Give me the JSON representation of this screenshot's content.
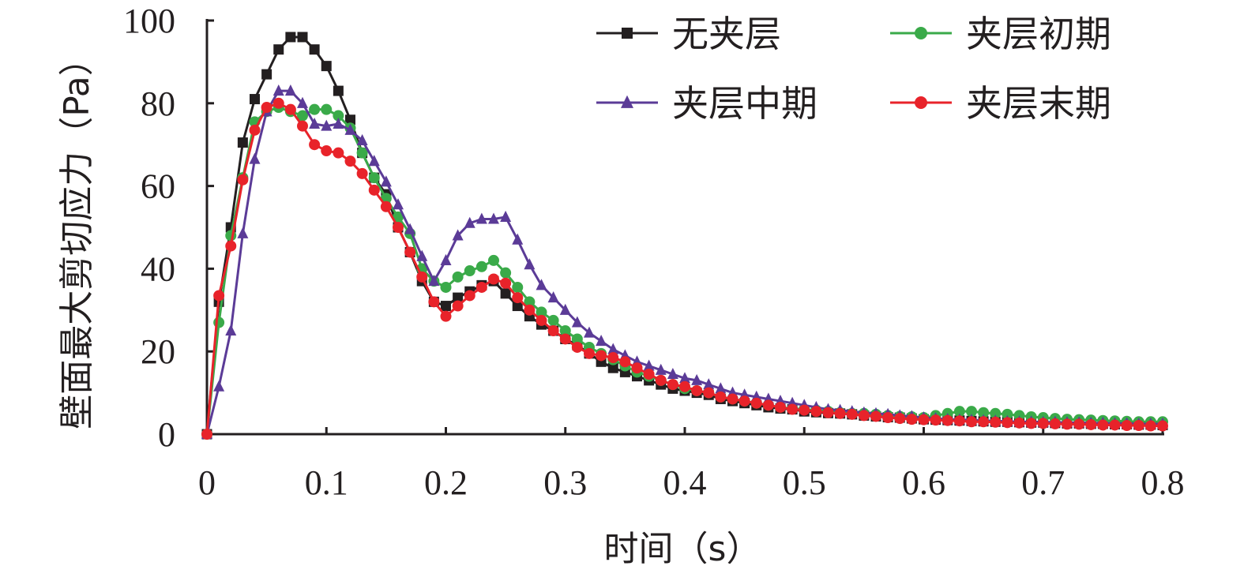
{
  "chart_data": {
    "type": "line",
    "xlabel": "时间（s）",
    "ylabel": "壁面最大剪切应力（Pa）",
    "xlim": [
      0,
      0.8
    ],
    "ylim": [
      0,
      100
    ],
    "xticks": [
      "0",
      "0.1",
      "0.2",
      "0.3",
      "0.4",
      "0.5",
      "0.6",
      "0.7",
      "0.8"
    ],
    "yticks": [
      "0",
      "20",
      "40",
      "60",
      "80",
      "100"
    ],
    "grid": false,
    "legend_position": "top-right",
    "series": [
      {
        "name": "无夹层",
        "color": "#231f20",
        "marker": "square",
        "x": [
          0,
          0.01,
          0.02,
          0.03,
          0.04,
          0.05,
          0.06,
          0.07,
          0.08,
          0.09,
          0.1,
          0.11,
          0.12,
          0.13,
          0.14,
          0.15,
          0.16,
          0.17,
          0.18,
          0.19,
          0.2,
          0.21,
          0.22,
          0.23,
          0.24,
          0.25,
          0.26,
          0.27,
          0.28,
          0.29,
          0.3,
          0.31,
          0.32,
          0.33,
          0.34,
          0.35,
          0.36,
          0.37,
          0.38,
          0.39,
          0.4,
          0.41,
          0.42,
          0.43,
          0.44,
          0.45,
          0.46,
          0.47,
          0.48,
          0.49,
          0.5,
          0.51,
          0.52,
          0.53,
          0.54,
          0.55,
          0.56,
          0.57,
          0.58,
          0.59,
          0.6,
          0.61,
          0.62,
          0.63,
          0.64,
          0.65,
          0.66,
          0.67,
          0.68,
          0.69,
          0.7,
          0.71,
          0.72,
          0.73,
          0.74,
          0.75,
          0.76,
          0.77,
          0.78,
          0.79,
          0.8
        ],
        "y": [
          0,
          32,
          50,
          70.5,
          81,
          87,
          93,
          96,
          96,
          93,
          89,
          83,
          76,
          68,
          62,
          58,
          50,
          44,
          37,
          32,
          31,
          33,
          34.5,
          36,
          37,
          34,
          31,
          28.5,
          26.5,
          25,
          23,
          21.5,
          19.5,
          17.5,
          16,
          15,
          14,
          13,
          12,
          11,
          10.5,
          10,
          9.5,
          8.5,
          8,
          7.5,
          7,
          6.5,
          6.2,
          6,
          5.5,
          5.3,
          5.1,
          5,
          4.8,
          4.5,
          4.3,
          4.1,
          4,
          3.8,
          3.6,
          3.5,
          3.4,
          3.3,
          3.2,
          3.1,
          3,
          3,
          2.9,
          2.8,
          2.8,
          2.7,
          2.6,
          2.6,
          2.5,
          2.5,
          2.4,
          2.4,
          2.3,
          2.3,
          2.2
        ]
      },
      {
        "name": "夹层初期",
        "color": "#3aaa49",
        "marker": "circle",
        "x": [
          0,
          0.01,
          0.02,
          0.03,
          0.04,
          0.05,
          0.06,
          0.07,
          0.08,
          0.09,
          0.1,
          0.11,
          0.12,
          0.13,
          0.14,
          0.15,
          0.16,
          0.17,
          0.18,
          0.19,
          0.2,
          0.21,
          0.22,
          0.23,
          0.24,
          0.25,
          0.26,
          0.27,
          0.28,
          0.29,
          0.3,
          0.31,
          0.32,
          0.33,
          0.34,
          0.35,
          0.36,
          0.37,
          0.38,
          0.39,
          0.4,
          0.41,
          0.42,
          0.43,
          0.44,
          0.45,
          0.46,
          0.47,
          0.48,
          0.49,
          0.5,
          0.51,
          0.52,
          0.53,
          0.54,
          0.55,
          0.56,
          0.57,
          0.58,
          0.59,
          0.6,
          0.61,
          0.62,
          0.63,
          0.64,
          0.65,
          0.66,
          0.67,
          0.68,
          0.69,
          0.7,
          0.71,
          0.72,
          0.73,
          0.74,
          0.75,
          0.76,
          0.77,
          0.78,
          0.79,
          0.8
        ],
        "y": [
          0,
          27,
          48,
          62,
          75.5,
          78,
          79,
          78,
          77,
          78.5,
          78.5,
          77,
          74,
          68,
          62,
          57,
          52.5,
          48.5,
          40,
          37,
          35.5,
          38,
          39.5,
          40.5,
          42,
          39,
          35.5,
          32,
          29.5,
          27.5,
          25,
          23,
          21,
          19.5,
          18,
          16.5,
          15,
          14,
          13,
          12,
          11,
          10.5,
          10,
          9,
          8.5,
          8,
          7.5,
          7,
          6.5,
          6.2,
          6,
          5.8,
          5.5,
          5.2,
          5,
          5,
          4.8,
          4.5,
          4.3,
          4.2,
          4,
          4.5,
          5,
          5.5,
          5.5,
          5.2,
          5,
          4.8,
          4.5,
          4.2,
          4,
          3.8,
          3.6,
          3.5,
          3.4,
          3.3,
          3.2,
          3.1,
          3,
          3,
          3
        ]
      },
      {
        "name": "夹层中期",
        "color": "#5b3b97",
        "marker": "triangle",
        "x": [
          0,
          0.01,
          0.02,
          0.03,
          0.04,
          0.05,
          0.06,
          0.07,
          0.08,
          0.09,
          0.1,
          0.11,
          0.12,
          0.13,
          0.14,
          0.15,
          0.16,
          0.17,
          0.18,
          0.19,
          0.2,
          0.21,
          0.22,
          0.23,
          0.24,
          0.25,
          0.26,
          0.27,
          0.28,
          0.29,
          0.3,
          0.31,
          0.32,
          0.33,
          0.34,
          0.35,
          0.36,
          0.37,
          0.38,
          0.39,
          0.4,
          0.41,
          0.42,
          0.43,
          0.44,
          0.45,
          0.46,
          0.47,
          0.48,
          0.49,
          0.5,
          0.51,
          0.52,
          0.53,
          0.54,
          0.55,
          0.56,
          0.57,
          0.58,
          0.59,
          0.6,
          0.61,
          0.62,
          0.63,
          0.64,
          0.65,
          0.66,
          0.67,
          0.68,
          0.69,
          0.7,
          0.71,
          0.72,
          0.73,
          0.74,
          0.75,
          0.76,
          0.77,
          0.78,
          0.79,
          0.8
        ],
        "y": [
          0,
          11.5,
          25,
          48.5,
          66.5,
          78,
          83,
          83,
          80,
          75,
          74.5,
          75,
          73.5,
          71,
          66,
          61,
          55.5,
          49.5,
          43,
          37,
          42,
          48,
          51,
          52,
          52,
          52.5,
          47,
          41,
          36,
          33,
          30,
          27,
          24.5,
          22.5,
          20.5,
          19,
          17.5,
          16.5,
          15.5,
          14.5,
          13.5,
          13,
          12,
          11,
          10,
          9.5,
          9,
          8.5,
          8,
          7.5,
          7,
          6.5,
          6,
          5.8,
          5.5,
          5.2,
          5,
          4.8,
          4.5,
          4.3,
          4,
          3.8,
          3.6,
          3.5,
          3.4,
          3.3,
          3.2,
          3.1,
          3,
          3,
          2.9,
          2.9,
          2.8,
          2.8,
          2.7,
          2.7,
          2.6,
          2.6,
          2.5,
          2.5,
          2.5
        ]
      },
      {
        "name": "夹层末期",
        "color": "#e8232a",
        "marker": "circle",
        "x": [
          0,
          0.01,
          0.02,
          0.03,
          0.04,
          0.05,
          0.06,
          0.07,
          0.08,
          0.09,
          0.1,
          0.11,
          0.12,
          0.13,
          0.14,
          0.15,
          0.16,
          0.17,
          0.18,
          0.19,
          0.2,
          0.21,
          0.22,
          0.23,
          0.24,
          0.25,
          0.26,
          0.27,
          0.28,
          0.29,
          0.3,
          0.31,
          0.32,
          0.33,
          0.34,
          0.35,
          0.36,
          0.37,
          0.38,
          0.39,
          0.4,
          0.41,
          0.42,
          0.43,
          0.44,
          0.45,
          0.46,
          0.47,
          0.48,
          0.49,
          0.5,
          0.51,
          0.52,
          0.53,
          0.54,
          0.55,
          0.56,
          0.57,
          0.58,
          0.59,
          0.6,
          0.61,
          0.62,
          0.63,
          0.64,
          0.65,
          0.66,
          0.67,
          0.68,
          0.69,
          0.7,
          0.71,
          0.72,
          0.73,
          0.74,
          0.75,
          0.76,
          0.77,
          0.78,
          0.79,
          0.8
        ],
        "y": [
          0,
          33.5,
          45.5,
          61.5,
          73.5,
          79,
          80,
          78.5,
          74.5,
          70,
          68.5,
          68,
          66,
          63,
          59,
          55,
          50,
          44,
          38,
          32,
          28.5,
          31,
          33.5,
          35.5,
          37.5,
          36.5,
          33,
          30,
          27.5,
          25,
          23,
          21,
          19.5,
          19,
          18.5,
          17.5,
          16,
          14.5,
          13,
          12,
          11.5,
          10.5,
          10,
          9,
          8.5,
          8,
          7.5,
          7,
          6.5,
          6,
          5.8,
          5.5,
          5.2,
          5,
          4.8,
          4.5,
          4.3,
          4,
          3.8,
          3.6,
          3.5,
          3.4,
          3.3,
          3.2,
          3,
          3,
          2.9,
          2.8,
          2.7,
          2.6,
          2.6,
          2.5,
          2.4,
          2.4,
          2.3,
          2.2,
          2.2,
          2.1,
          2.1,
          2,
          2
        ]
      }
    ]
  }
}
